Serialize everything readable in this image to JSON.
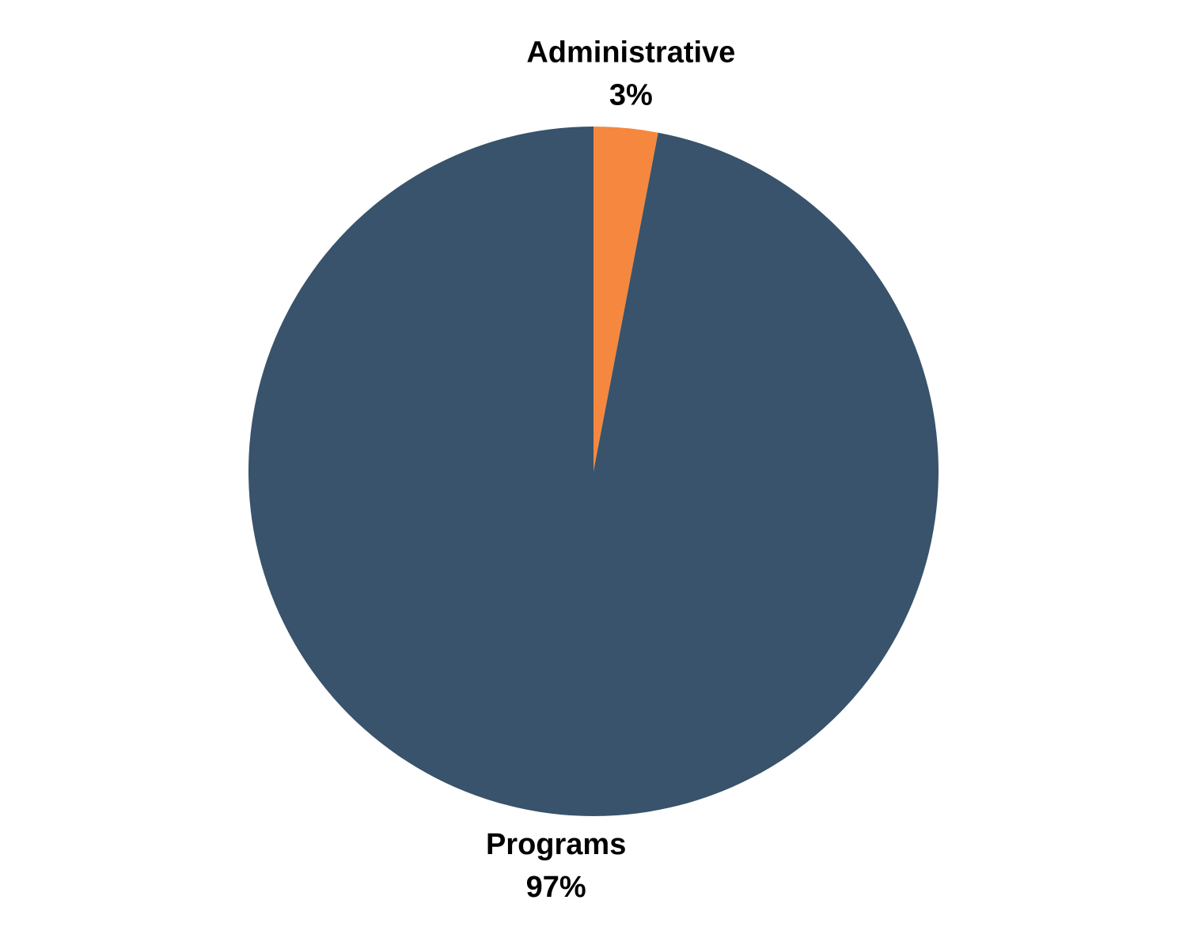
{
  "chart_data": {
    "type": "pie",
    "categories": [
      "Administrative",
      "Programs"
    ],
    "values": [
      3,
      97
    ],
    "value_labels": [
      "3%",
      "97%"
    ],
    "colors": [
      "#f5883e",
      "#38536b"
    ]
  }
}
